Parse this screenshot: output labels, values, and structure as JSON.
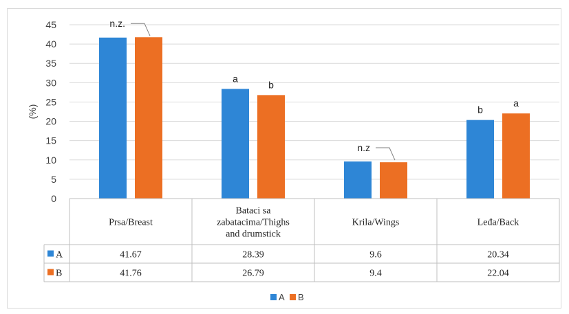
{
  "chart_data": {
    "type": "bar",
    "title": "",
    "xlabel": "",
    "ylabel": "(%)",
    "ylim": [
      0,
      45
    ],
    "yticks": [
      0,
      5,
      10,
      15,
      20,
      25,
      30,
      35,
      40,
      45
    ],
    "grid": true,
    "legend_position": "bottom",
    "categories": [
      [
        "Prsa/Breast"
      ],
      [
        "Bataci sa",
        "zabatacima/Thighs",
        "and drumstick"
      ],
      [
        "Krila/Wings"
      ],
      [
        "Leđa/Back"
      ]
    ],
    "series": [
      {
        "name": "A",
        "color": "#2e86d6",
        "values": [
          41.67,
          28.39,
          9.6,
          20.34
        ],
        "value_labels": [
          "41.67",
          "28.39",
          "9.6",
          "20.34"
        ]
      },
      {
        "name": "B",
        "color": "#ec6f23",
        "values": [
          41.76,
          26.79,
          9.4,
          22.04
        ],
        "value_labels": [
          "41.76",
          "26.79",
          "9.4",
          "22.04"
        ]
      }
    ],
    "annotations": [
      {
        "category": 0,
        "series": "both",
        "text": "n.z."
      },
      {
        "category": 1,
        "series": 0,
        "text": "a"
      },
      {
        "category": 1,
        "series": 1,
        "text": "b"
      },
      {
        "category": 2,
        "series": "both",
        "text": "n.z"
      },
      {
        "category": 3,
        "series": 0,
        "text": "b"
      },
      {
        "category": 3,
        "series": 1,
        "text": "a"
      }
    ]
  }
}
